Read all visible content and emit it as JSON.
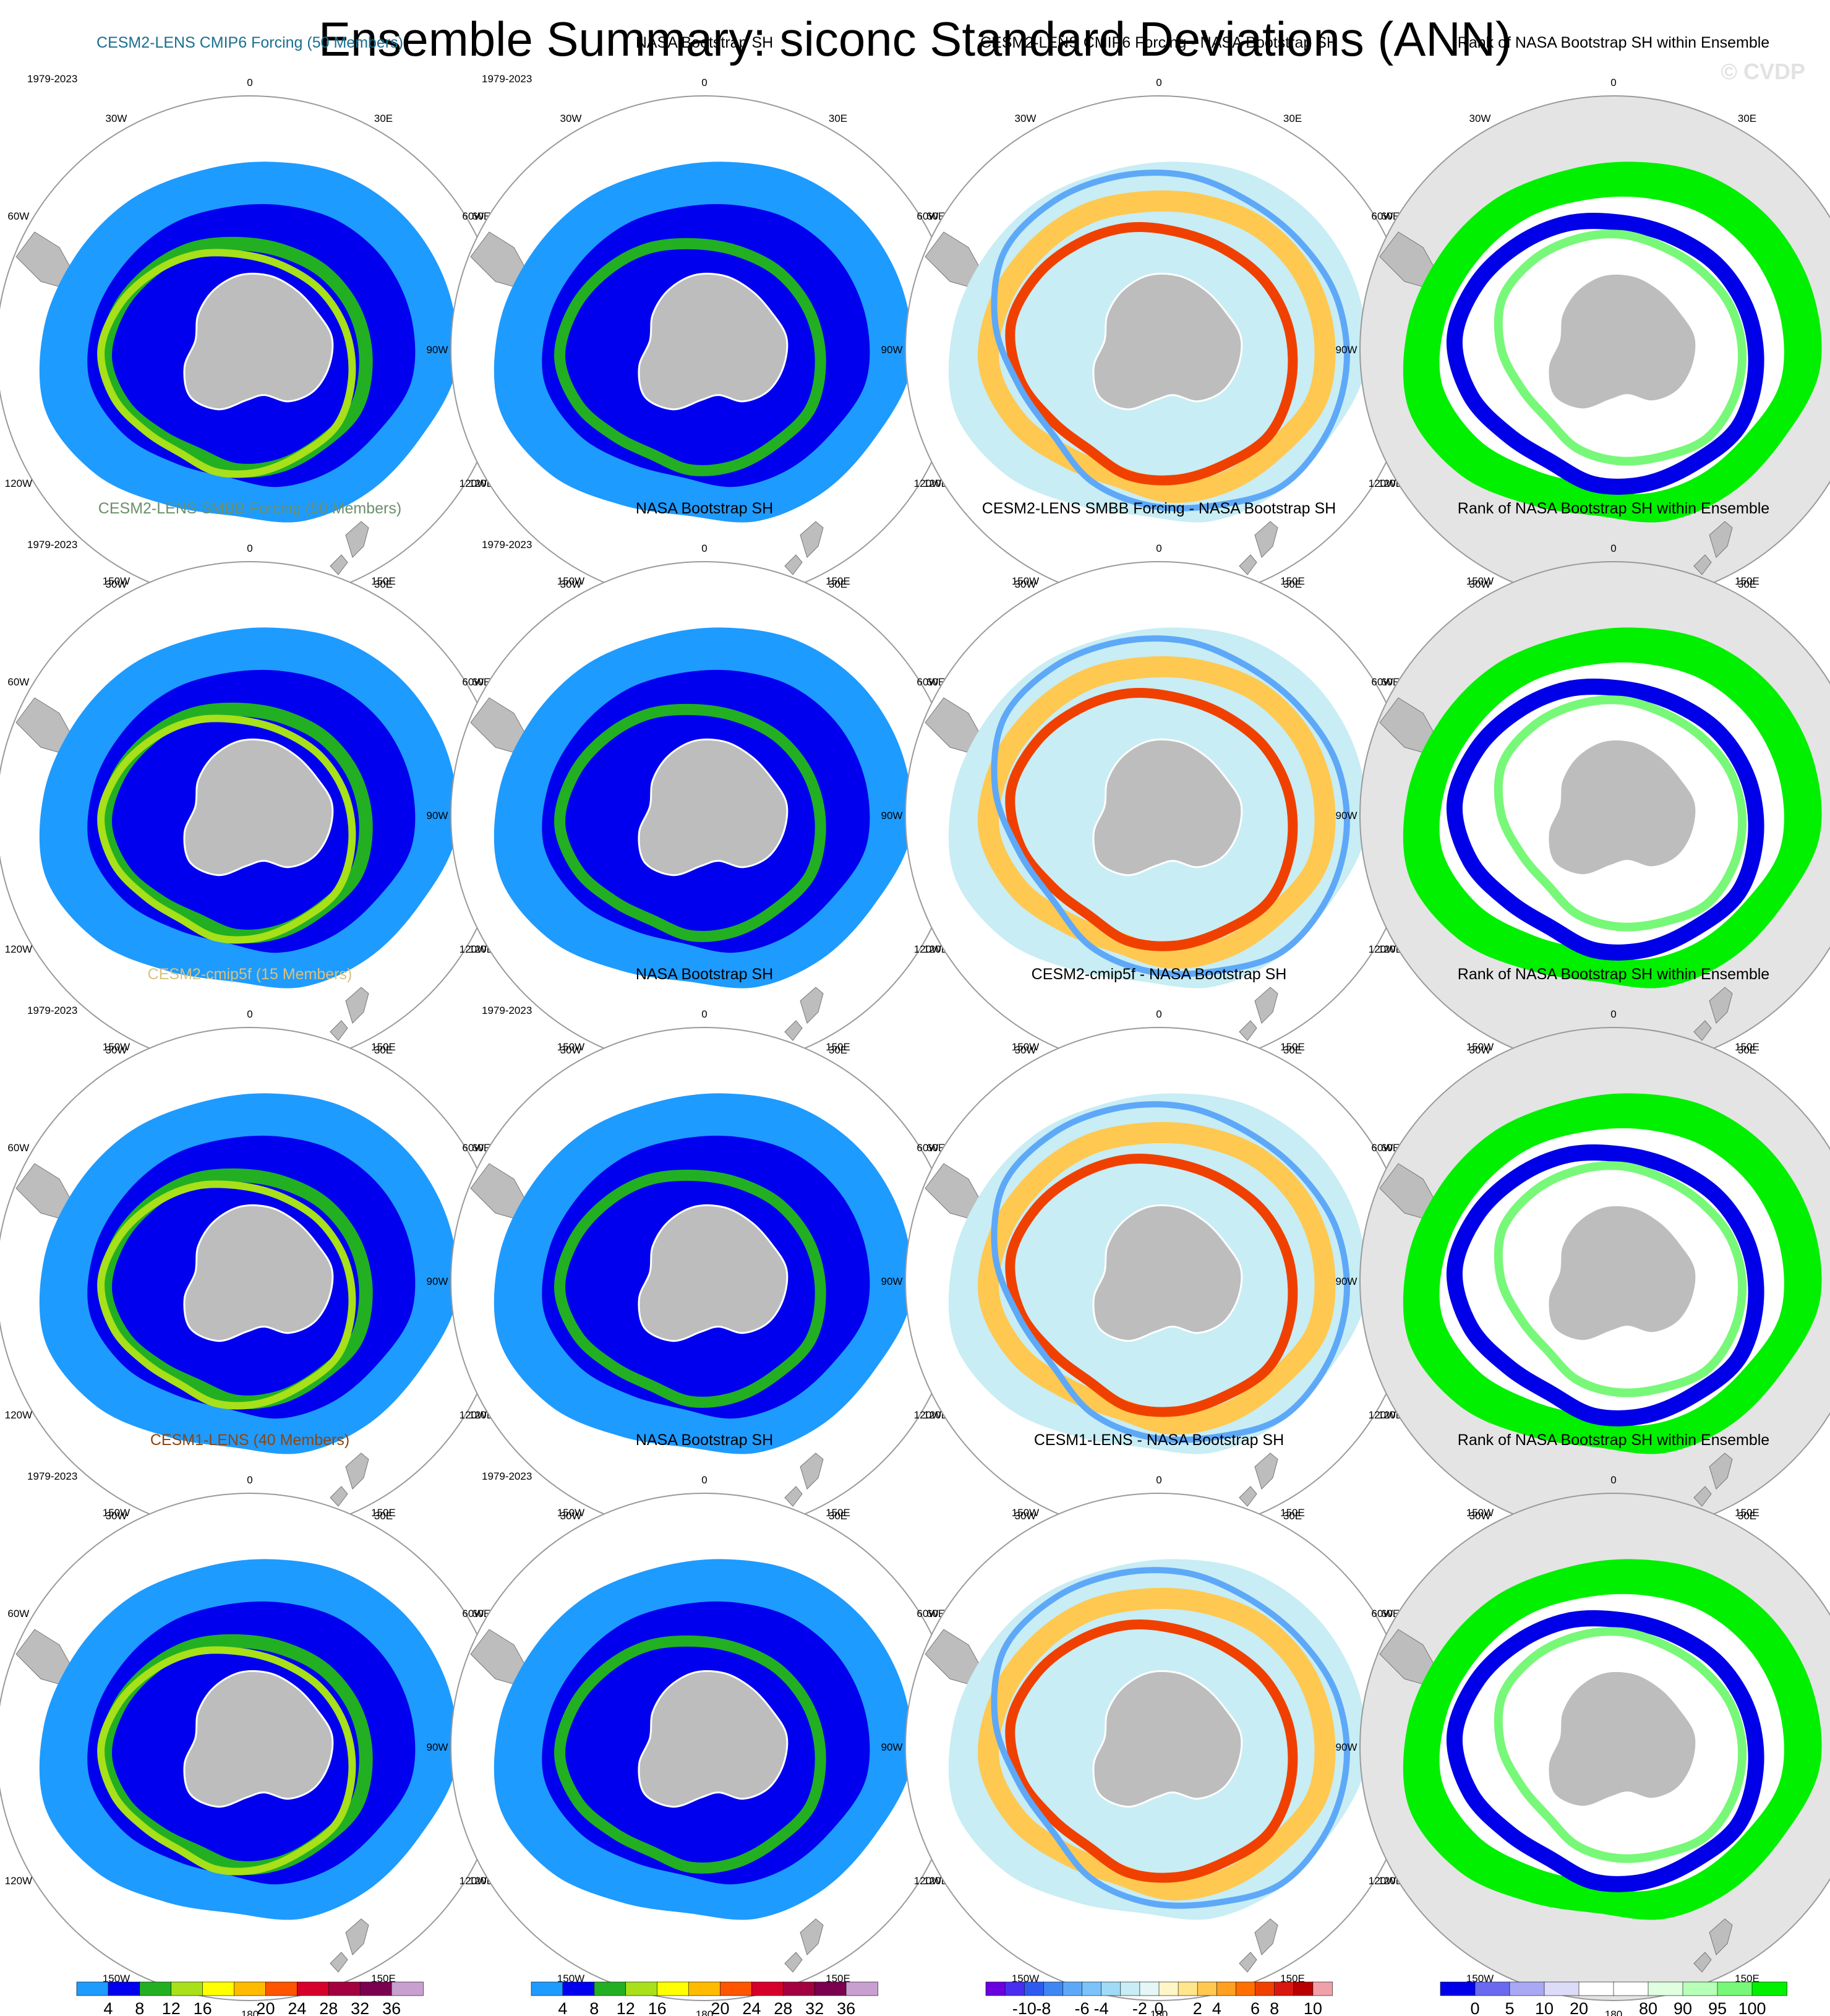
{
  "title": "Ensemble Summary: siconc Standard Deviations (ANN)",
  "watermark": "© CVDP",
  "period": "1979-2023",
  "column_colors": {
    "land": "#bdbdbd",
    "rank_background": "#e4e4e4",
    "circle": "#9a9a9a"
  },
  "rows": [
    {
      "ensemble_title": "CESM2-LENS CMIP6 Forcing (50 Members)",
      "ensemble_color": "#1a6f8e",
      "obs_title": "NASA Bootstrap SH",
      "diff_title": "CESM2-LENS CMIP6 Forcing - NASA Bootstrap SH",
      "rank_title": "Rank of NASA Bootstrap SH within Ensemble"
    },
    {
      "ensemble_title": "CESM2-LENS SMBB Forcing (50 Members)",
      "ensemble_color": "#6b8f6b",
      "obs_title": "NASA Bootstrap SH",
      "diff_title": "CESM2-LENS SMBB Forcing - NASA Bootstrap SH",
      "rank_title": "Rank of NASA Bootstrap SH within Ensemble"
    },
    {
      "ensemble_title": "CESM2-cmip5f (15 Members)",
      "ensemble_color": "#d9c27a",
      "obs_title": "NASA Bootstrap SH",
      "diff_title": "CESM2-cmip5f - NASA Bootstrap SH",
      "rank_title": "Rank of NASA Bootstrap SH within Ensemble"
    },
    {
      "ensemble_title": "CESM1-LENS (40 Members)",
      "ensemble_color": "#8b4513",
      "obs_title": "NASA Bootstrap SH",
      "diff_title": "CESM1-LENS - NASA Bootstrap SH",
      "rank_title": "Rank of NASA Bootstrap SH within Ensemble"
    }
  ],
  "map_labels": [
    "0",
    "30E",
    "60E",
    "90E",
    "120E",
    "150E",
    "180",
    "150W",
    "120W",
    "90W",
    "60W",
    "30W"
  ],
  "colorbars": [
    {
      "unit": "%",
      "colors": [
        "#1e9bff",
        "#0000ee",
        "#22b022",
        "#a8e01a",
        "#ffff00",
        "#ffbb00",
        "#ff5500",
        "#d6002a",
        "#a30040",
        "#7a0050",
        "#c8a0d0"
      ],
      "labels": [
        "4",
        "8",
        "12",
        "16",
        "20",
        "24",
        "28",
        "32",
        "36"
      ]
    },
    {
      "unit": "%",
      "colors": [
        "#1e9bff",
        "#0000ee",
        "#22b022",
        "#a8e01a",
        "#ffff00",
        "#ffbb00",
        "#ff5500",
        "#d6002a",
        "#a30040",
        "#7a0050",
        "#c8a0d0"
      ],
      "labels": [
        "4",
        "8",
        "12",
        "16",
        "20",
        "24",
        "28",
        "32",
        "36"
      ]
    },
    {
      "unit": "%",
      "colors": [
        "#6a00e0",
        "#4a2ef0",
        "#2f5af0",
        "#3f86f5",
        "#5ea8f8",
        "#7cc3fa",
        "#a0daf7",
        "#c8edf4",
        "#e4f6f6",
        "#fff6c8",
        "#ffe58c",
        "#ffc850",
        "#ffa020",
        "#ff7000",
        "#f04000",
        "#d81810",
        "#b80000",
        "#f0a0a8"
      ],
      "labels": [
        "-10",
        "-8",
        "-6",
        "-4",
        "-2",
        "0",
        "2",
        "4",
        "6",
        "8",
        "10"
      ]
    },
    {
      "unit": "%",
      "colors": [
        "#0000e8",
        "#6a6af0",
        "#a8a8f4",
        "#dcdcf8",
        "#ffffff",
        "#ffffff",
        "#e0ffe0",
        "#b8ffb8",
        "#78f878",
        "#00f000"
      ],
      "labels": [
        "0",
        "5",
        "10",
        "20",
        "80",
        "90",
        "95",
        "100"
      ]
    }
  ]
}
